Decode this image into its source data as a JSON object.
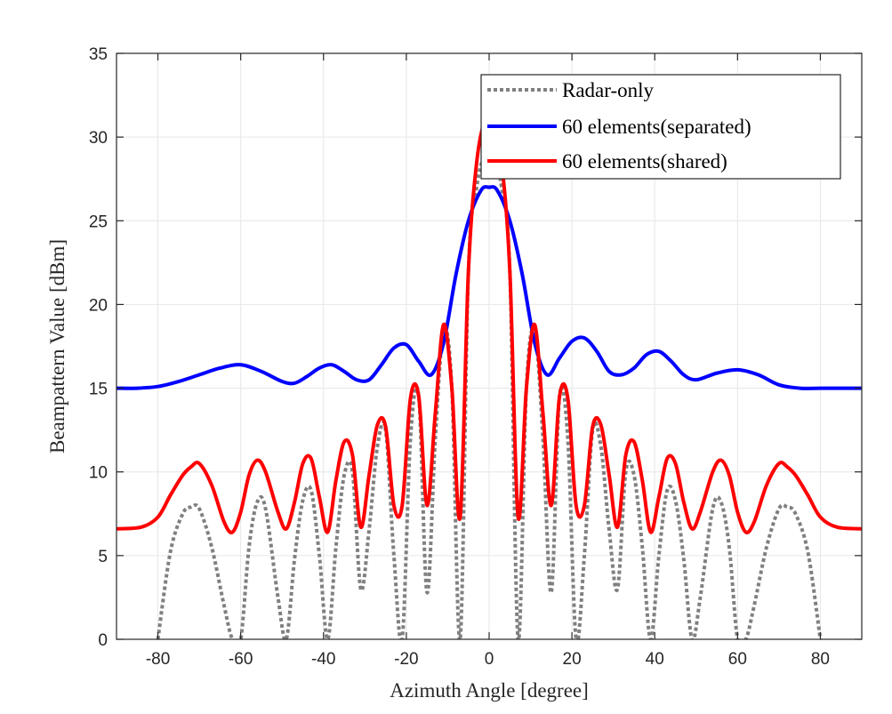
{
  "chart_data": {
    "type": "line",
    "xlabel": "Azimuth Angle [degree]",
    "ylabel": "Beampattern Value [dBm]",
    "xlim": [
      -90,
      90
    ],
    "ylim": [
      0,
      35
    ],
    "xticks": [
      -80,
      -60,
      -40,
      -20,
      0,
      20,
      40,
      60,
      80
    ],
    "yticks": [
      0,
      5,
      10,
      15,
      20,
      25,
      30,
      35
    ],
    "xtick_labels": [
      "-80",
      "-60",
      "-40",
      "-20",
      "0",
      "20",
      "40",
      "60",
      "80"
    ],
    "ytick_labels": [
      "0",
      "5",
      "10",
      "15",
      "20",
      "25",
      "30",
      "35"
    ],
    "grid": true,
    "legend_position": "top-right",
    "colors": {
      "radar": "#808080",
      "separated": "#0000ff",
      "shared": "#ff0000",
      "axis": "#262626",
      "grid": "#e6e6e6"
    },
    "series": [
      {
        "name": "Radar-only",
        "style": "dotted",
        "x": [
          -80,
          -77,
          -74,
          -72,
          -70,
          -67,
          -64,
          -62,
          -60,
          -58,
          -56,
          -54,
          -51,
          -49,
          -47,
          -45,
          -43,
          -41,
          -39,
          -37,
          -35,
          -33,
          -31,
          -29,
          -27,
          -25,
          -23,
          -21,
          -19,
          -17,
          -15,
          -13,
          -11,
          -9,
          -7,
          -5,
          -3,
          -1,
          1,
          3,
          5,
          7,
          9,
          11,
          13,
          15,
          17,
          19,
          21,
          23,
          25,
          27,
          29,
          31,
          33,
          35,
          37,
          39,
          41,
          43,
          45,
          47,
          49,
          51,
          54,
          56,
          58,
          60,
          62,
          64,
          67,
          70,
          72,
          74,
          77,
          80
        ],
        "y": [
          0.0,
          5.2,
          7.5,
          7.9,
          7.8,
          5.5,
          2.0,
          0.0,
          0.0,
          5.5,
          8.2,
          7.8,
          2.5,
          0.0,
          4.8,
          8.3,
          8.9,
          5.0,
          0.0,
          5.5,
          9.8,
          10.0,
          3.0,
          6.5,
          11.5,
          12.5,
          5.0,
          0.0,
          12.0,
          14.5,
          2.8,
          12.0,
          18.5,
          15.0,
          0.0,
          22.0,
          27.0,
          29.0,
          29.0,
          27.0,
          22.0,
          0.0,
          15.0,
          18.5,
          12.0,
          2.8,
          14.5,
          12.0,
          0.0,
          5.0,
          12.5,
          11.5,
          6.5,
          3.0,
          10.0,
          9.8,
          5.5,
          0.0,
          5.0,
          8.9,
          8.3,
          4.8,
          0.0,
          2.5,
          7.8,
          8.2,
          5.5,
          0.0,
          0.0,
          2.0,
          5.5,
          7.8,
          7.9,
          7.5,
          5.2,
          0.0
        ]
      },
      {
        "name": "60 elements(separated)",
        "style": "solid",
        "x": [
          -90,
          -85,
          -80,
          -75,
          -70,
          -65,
          -60,
          -55,
          -50,
          -47,
          -44,
          -41,
          -38,
          -35,
          -32,
          -29,
          -26,
          -23,
          -20,
          -17,
          -14,
          -11,
          -8,
          -5,
          -2,
          0,
          2,
          5,
          8,
          11,
          14,
          17,
          20,
          23,
          26,
          29,
          32,
          35,
          38,
          41,
          44,
          47,
          50,
          55,
          60,
          65,
          70,
          75,
          80,
          85,
          90
        ],
        "y": [
          15.0,
          15.0,
          15.1,
          15.4,
          15.8,
          16.2,
          16.4,
          16.0,
          15.4,
          15.3,
          15.7,
          16.2,
          16.4,
          16.0,
          15.5,
          15.5,
          16.4,
          17.4,
          17.6,
          16.6,
          15.8,
          17.7,
          21.8,
          25.0,
          26.8,
          27.0,
          26.8,
          25.0,
          21.8,
          17.7,
          15.8,
          16.8,
          17.8,
          18.0,
          17.2,
          16.0,
          15.8,
          16.2,
          17.0,
          17.2,
          16.6,
          15.8,
          15.5,
          15.9,
          16.1,
          15.8,
          15.2,
          15.0,
          15.0,
          15.0,
          15.0
        ]
      },
      {
        "name": "60 elements(shared)",
        "style": "solid",
        "x": [
          -90,
          -84,
          -80,
          -77,
          -74,
          -72,
          -70,
          -67,
          -64,
          -62,
          -60,
          -58,
          -56,
          -54,
          -51,
          -49,
          -47,
          -45,
          -43,
          -41,
          -39,
          -37,
          -35,
          -33,
          -31,
          -29,
          -27,
          -25,
          -23,
          -21,
          -19,
          -17,
          -15,
          -13,
          -11,
          -9,
          -7,
          -5,
          -3,
          -1,
          1,
          3,
          5,
          7,
          9,
          11,
          13,
          15,
          17,
          19,
          21,
          23,
          25,
          27,
          29,
          31,
          33,
          35,
          37,
          39,
          41,
          43,
          45,
          47,
          49,
          51,
          54,
          56,
          58,
          60,
          62,
          64,
          67,
          70,
          72,
          74,
          77,
          80,
          84,
          90
        ],
        "y": [
          6.6,
          6.7,
          7.3,
          8.6,
          9.8,
          10.3,
          10.5,
          9.2,
          7.0,
          6.4,
          7.6,
          9.8,
          10.7,
          10.0,
          7.6,
          6.6,
          8.2,
          10.5,
          10.8,
          8.5,
          6.4,
          9.5,
          11.8,
          11.0,
          6.7,
          9.8,
          12.8,
          12.7,
          8.0,
          8.0,
          14.4,
          14.5,
          8.0,
          13.5,
          18.8,
          15.0,
          7.3,
          22.0,
          28.5,
          31.0,
          31.0,
          28.5,
          22.0,
          7.3,
          15.0,
          18.8,
          13.5,
          8.0,
          14.5,
          14.4,
          8.0,
          8.0,
          12.7,
          12.8,
          9.8,
          6.7,
          11.0,
          11.8,
          9.5,
          6.4,
          8.5,
          10.8,
          10.5,
          8.2,
          6.6,
          7.6,
          10.0,
          10.7,
          9.8,
          7.6,
          6.4,
          7.0,
          9.2,
          10.5,
          10.3,
          9.8,
          8.6,
          7.3,
          6.7,
          6.6
        ]
      }
    ]
  }
}
